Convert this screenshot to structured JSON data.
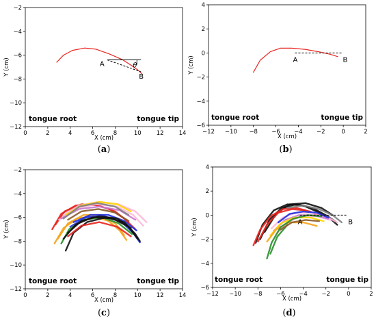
{
  "chart_data": [
    {
      "id": "a",
      "type": "line",
      "caption_letter": "a",
      "xlabel": "X (cm)",
      "ylabel": "Y (cm)",
      "xlim": [
        0,
        14
      ],
      "ylim": [
        -12,
        -2
      ],
      "xticks": [
        0,
        2,
        4,
        6,
        8,
        10,
        12,
        14
      ],
      "yticks": [
        -12,
        -10,
        -8,
        -6,
        -4,
        -2
      ],
      "corner_left": "tongue root",
      "corner_right": "tongue tip",
      "curves": [
        {
          "color": "#e8251f",
          "points": [
            [
              2.8,
              -6.6
            ],
            [
              3.4,
              -6.0
            ],
            [
              4.2,
              -5.6
            ],
            [
              5.3,
              -5.4
            ],
            [
              6.3,
              -5.5
            ],
            [
              7.5,
              -5.9
            ],
            [
              8.7,
              -6.4
            ],
            [
              9.5,
              -6.9
            ],
            [
              10.1,
              -7.3
            ],
            [
              10.4,
              -7.6
            ]
          ]
        }
      ],
      "annotations": {
        "A_label": "A",
        "B_label": "B",
        "theta_label": "θ",
        "A": [
          7.3,
          -6.4
        ],
        "B": [
          10.3,
          -7.4
        ],
        "horizontal_end": [
          10.3,
          -6.4
        ]
      }
    },
    {
      "id": "b",
      "type": "line",
      "caption_letter": "b",
      "xlabel": "X (cm)",
      "ylabel": "Y (cm)",
      "xlim": [
        -12,
        2
      ],
      "ylim": [
        -6,
        4
      ],
      "xticks": [
        -12,
        -10,
        -8,
        -6,
        -4,
        -2,
        0,
        2
      ],
      "yticks": [
        -6,
        -4,
        -2,
        0,
        2,
        4
      ],
      "corner_left": "tongue root",
      "corner_right": "tongue tip",
      "curves": [
        {
          "color": "#e8251f",
          "points": [
            [
              -8.0,
              -1.6
            ],
            [
              -7.4,
              -0.6
            ],
            [
              -6.5,
              0.1
            ],
            [
              -5.6,
              0.4
            ],
            [
              -4.6,
              0.4
            ],
            [
              -3.4,
              0.3
            ],
            [
              -2.2,
              0.1
            ],
            [
              -1.2,
              -0.1
            ],
            [
              -0.5,
              -0.3
            ]
          ]
        }
      ],
      "annotations": {
        "A_label": "A",
        "B_label": "B",
        "A": [
          -4.3,
          0.0
        ],
        "B": [
          -0.1,
          0.0
        ]
      }
    },
    {
      "id": "c",
      "type": "line",
      "caption_letter": "c",
      "xlabel": "X (cm)",
      "ylabel": "Y (cm)",
      "xlim": [
        0,
        14
      ],
      "ylim": [
        -12,
        -2
      ],
      "xticks": [
        0,
        2,
        4,
        6,
        8,
        10,
        12,
        14
      ],
      "yticks": [
        -12,
        -10,
        -8,
        -6,
        -4,
        -2
      ],
      "corner_left": "tongue root",
      "corner_right": "tongue tip",
      "curves": [
        {
          "color": "#e8251f",
          "points": [
            [
              2.4,
              -7.0
            ],
            [
              3.2,
              -5.7
            ],
            [
              4.5,
              -5.0
            ],
            [
              6.0,
              -4.9
            ],
            [
              7.5,
              -5.3
            ],
            [
              8.8,
              -6.1
            ],
            [
              9.8,
              -7.0
            ]
          ]
        },
        {
          "color": "#e8251f",
          "points": [
            [
              2.7,
              -6.6
            ],
            [
              3.5,
              -5.5
            ],
            [
              5.0,
              -4.9
            ],
            [
              6.5,
              -5.0
            ],
            [
              8.0,
              -5.5
            ],
            [
              9.2,
              -6.4
            ]
          ]
        },
        {
          "color": "#ffb8d9",
          "points": [
            [
              3.4,
              -5.8
            ],
            [
              4.8,
              -5.0
            ],
            [
              6.5,
              -4.7
            ],
            [
              8.3,
              -4.9
            ],
            [
              9.8,
              -5.5
            ],
            [
              10.8,
              -6.4
            ]
          ]
        },
        {
          "color": "#ffb8d9",
          "points": [
            [
              3.0,
              -6.2
            ],
            [
              4.6,
              -5.2
            ],
            [
              6.4,
              -4.9
            ],
            [
              8.2,
              -5.1
            ],
            [
              9.6,
              -5.8
            ],
            [
              10.5,
              -6.7
            ]
          ]
        },
        {
          "color": "#c878cf",
          "points": [
            [
              3.2,
              -6.1
            ],
            [
              4.8,
              -5.3
            ],
            [
              6.6,
              -5.1
            ],
            [
              8.4,
              -5.4
            ],
            [
              9.8,
              -6.2
            ]
          ]
        },
        {
          "color": "#ffd700",
          "points": [
            [
              3.6,
              -5.8
            ],
            [
              5.0,
              -5.0
            ],
            [
              6.6,
              -4.7
            ],
            [
              8.2,
              -4.9
            ],
            [
              9.4,
              -5.5
            ]
          ]
        },
        {
          "color": "#f5a31a",
          "points": [
            [
              2.6,
              -8.2
            ],
            [
              3.4,
              -6.9
            ],
            [
              4.6,
              -6.1
            ],
            [
              6.0,
              -5.9
            ],
            [
              7.4,
              -6.3
            ],
            [
              8.4,
              -7.1
            ],
            [
              9.0,
              -7.9
            ]
          ]
        },
        {
          "color": "#f5a31a",
          "points": [
            [
              2.9,
              -7.8
            ],
            [
              3.8,
              -6.5
            ],
            [
              5.2,
              -5.8
            ],
            [
              6.8,
              -5.8
            ],
            [
              8.0,
              -6.5
            ],
            [
              8.8,
              -7.5
            ]
          ]
        },
        {
          "color": "#8b5a2b",
          "points": [
            [
              3.8,
              -6.2
            ],
            [
              5.0,
              -5.5
            ],
            [
              6.5,
              -5.3
            ],
            [
              8.0,
              -5.6
            ],
            [
              9.2,
              -6.3
            ]
          ]
        },
        {
          "color": "#1e2fe0",
          "points": [
            [
              4.0,
              -6.8
            ],
            [
              5.4,
              -6.0
            ],
            [
              7.0,
              -5.9
            ],
            [
              8.6,
              -6.4
            ],
            [
              9.6,
              -7.3
            ],
            [
              10.2,
              -8.1
            ]
          ]
        },
        {
          "color": "#1e2fe0",
          "points": [
            [
              4.3,
              -6.4
            ],
            [
              5.8,
              -5.8
            ],
            [
              7.4,
              -5.8
            ],
            [
              8.8,
              -6.3
            ],
            [
              9.9,
              -7.1
            ]
          ]
        },
        {
          "color": "#2a8f2a",
          "points": [
            [
              3.2,
              -8.2
            ],
            [
              3.9,
              -7.0
            ],
            [
              5.2,
              -6.2
            ],
            [
              6.8,
              -6.0
            ],
            [
              8.3,
              -6.5
            ],
            [
              9.5,
              -7.4
            ]
          ]
        },
        {
          "color": "#111111",
          "points": [
            [
              3.6,
              -8.8
            ],
            [
              4.3,
              -7.3
            ],
            [
              5.5,
              -6.4
            ],
            [
              7.2,
              -6.0
            ],
            [
              8.8,
              -6.4
            ],
            [
              9.8,
              -7.4
            ],
            [
              10.2,
              -8.0
            ]
          ]
        },
        {
          "color": "#111111",
          "points": [
            [
              3.4,
              -7.8
            ],
            [
              4.5,
              -6.6
            ],
            [
              6.0,
              -6.0
            ],
            [
              7.8,
              -6.1
            ],
            [
              9.2,
              -6.8
            ],
            [
              10.0,
              -7.8
            ]
          ]
        },
        {
          "color": "#111111",
          "points": [
            [
              3.8,
              -7.3
            ],
            [
              5.0,
              -6.3
            ],
            [
              6.6,
              -5.9
            ],
            [
              8.2,
              -6.1
            ],
            [
              9.4,
              -6.9
            ]
          ]
        },
        {
          "color": "#7f7f7f",
          "points": [
            [
              3.4,
              -6.1
            ],
            [
              4.8,
              -5.1
            ],
            [
              6.4,
              -4.8
            ],
            [
              8.0,
              -5.1
            ],
            [
              9.2,
              -5.8
            ]
          ]
        },
        {
          "color": "#e8251f",
          "points": [
            [
              3.8,
              -7.6
            ],
            [
              5.0,
              -6.7
            ],
            [
              6.6,
              -6.4
            ],
            [
              8.2,
              -6.8
            ],
            [
              9.4,
              -7.6
            ]
          ]
        }
      ]
    },
    {
      "id": "d",
      "type": "line",
      "caption_letter": "d",
      "xlabel": "X (cm)",
      "ylabel": "Y (cm)",
      "xlim": [
        -12,
        2
      ],
      "ylim": [
        -6,
        4
      ],
      "xticks": [
        -12,
        -10,
        -8,
        -6,
        -4,
        -2,
        0,
        2
      ],
      "yticks": [
        -6,
        -4,
        -2,
        0,
        2,
        4
      ],
      "corner_left": "tongue root",
      "corner_right": "tongue tip",
      "curves": [
        {
          "color": "#111111",
          "points": [
            [
              -8.2,
              -2.3
            ],
            [
              -7.6,
              -0.8
            ],
            [
              -6.6,
              0.4
            ],
            [
              -5.4,
              0.9
            ],
            [
              -4.0,
              0.8
            ],
            [
              -2.8,
              0.3
            ],
            [
              -1.6,
              -0.3
            ],
            [
              -1.0,
              -0.8
            ]
          ]
        },
        {
          "color": "#111111",
          "points": [
            [
              -7.8,
              -2.0
            ],
            [
              -7.0,
              -0.4
            ],
            [
              -5.9,
              0.6
            ],
            [
              -4.6,
              0.9
            ],
            [
              -3.2,
              0.6
            ],
            [
              -2.0,
              0.0
            ],
            [
              -1.2,
              -0.5
            ]
          ]
        },
        {
          "color": "#111111",
          "points": [
            [
              -7.4,
              -1.4
            ],
            [
              -6.4,
              0.1
            ],
            [
              -5.2,
              0.9
            ],
            [
              -3.8,
              1.0
            ],
            [
              -2.4,
              0.6
            ],
            [
              -1.4,
              0.0
            ]
          ]
        },
        {
          "color": "#e8251f",
          "points": [
            [
              -8.4,
              -2.5
            ],
            [
              -7.8,
              -1.2
            ],
            [
              -6.9,
              -0.1
            ],
            [
              -5.8,
              0.5
            ],
            [
              -4.6,
              0.6
            ],
            [
              -3.4,
              0.3
            ],
            [
              -2.4,
              -0.1
            ]
          ]
        },
        {
          "color": "#e8251f",
          "points": [
            [
              -8.0,
              -2.2
            ],
            [
              -7.2,
              -0.8
            ],
            [
              -6.2,
              0.2
            ],
            [
              -5.0,
              0.5
            ],
            [
              -3.8,
              0.4
            ]
          ]
        },
        {
          "color": "#ffb8d9",
          "points": [
            [
              -6.8,
              -1.1
            ],
            [
              -5.8,
              -0.2
            ],
            [
              -4.6,
              0.2
            ],
            [
              -3.2,
              0.2
            ],
            [
              -2.0,
              -0.1
            ],
            [
              -1.0,
              -0.6
            ]
          ]
        },
        {
          "color": "#ffb8d9",
          "points": [
            [
              -6.4,
              -1.6
            ],
            [
              -5.4,
              -0.6
            ],
            [
              -4.2,
              -0.1
            ],
            [
              -2.8,
              -0.1
            ],
            [
              -1.6,
              -0.4
            ]
          ]
        },
        {
          "color": "#c878cf",
          "points": [
            [
              -6.6,
              -1.3
            ],
            [
              -5.6,
              -0.4
            ],
            [
              -4.4,
              0.0
            ],
            [
              -3.0,
              0.0
            ],
            [
              -1.8,
              -0.3
            ]
          ]
        },
        {
          "color": "#ffd700",
          "points": [
            [
              -6.9,
              -1.7
            ],
            [
              -6.0,
              -0.7
            ],
            [
              -4.8,
              -0.2
            ],
            [
              -3.4,
              -0.2
            ],
            [
              -2.2,
              -0.5
            ]
          ]
        },
        {
          "color": "#f5a31a",
          "points": [
            [
              -7.2,
              -2.2
            ],
            [
              -6.4,
              -1.2
            ],
            [
              -5.3,
              -0.6
            ],
            [
              -4.0,
              -0.6
            ],
            [
              -2.8,
              -0.9
            ]
          ]
        },
        {
          "color": "#1e2fe0",
          "points": [
            [
              -6.2,
              -0.6
            ],
            [
              -5.2,
              0.1
            ],
            [
              -4.0,
              0.3
            ],
            [
              -2.8,
              0.2
            ],
            [
              -1.8,
              -0.2
            ]
          ]
        },
        {
          "color": "#2a8f2a",
          "points": [
            [
              -7.2,
              -3.6
            ],
            [
              -6.8,
              -2.3
            ],
            [
              -6.0,
              -1.0
            ],
            [
              -4.9,
              -0.3
            ],
            [
              -3.6,
              0.0
            ],
            [
              -2.4,
              -0.1
            ]
          ]
        },
        {
          "color": "#2a8f2a",
          "points": [
            [
              -6.9,
              -3.2
            ],
            [
              -6.3,
              -1.8
            ],
            [
              -5.4,
              -0.8
            ]
          ]
        },
        {
          "color": "#7f7f7f",
          "points": [
            [
              -5.4,
              0.6
            ],
            [
              -4.0,
              0.8
            ],
            [
              -2.6,
              0.5
            ],
            [
              -1.4,
              0.0
            ],
            [
              -0.6,
              -0.6
            ]
          ]
        },
        {
          "color": "#8b5a2b",
          "points": [
            [
              -6.0,
              -1.2
            ],
            [
              -5.0,
              -0.6
            ],
            [
              -3.8,
              -0.4
            ],
            [
              -2.6,
              -0.5
            ]
          ]
        }
      ],
      "annotations": {
        "A_label": "A",
        "B_label": "B",
        "A": [
          -4.3,
          0.0
        ],
        "B": [
          -0.1,
          0.0
        ]
      }
    }
  ]
}
